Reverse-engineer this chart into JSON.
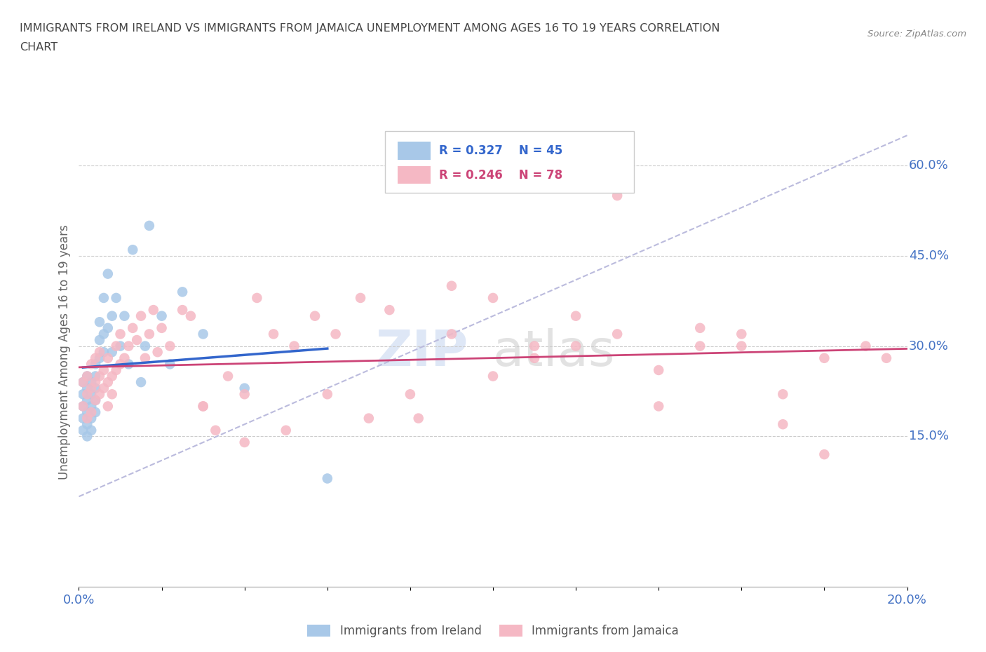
{
  "title_line1": "IMMIGRANTS FROM IRELAND VS IMMIGRANTS FROM JAMAICA UNEMPLOYMENT AMONG AGES 16 TO 19 YEARS CORRELATION",
  "title_line2": "CHART",
  "source_text": "Source: ZipAtlas.com",
  "ylabel": "Unemployment Among Ages 16 to 19 years",
  "xlim": [
    0.0,
    0.2
  ],
  "ylim": [
    -0.1,
    0.68
  ],
  "ytick_right_vals": [
    0.6,
    0.45,
    0.3,
    0.15
  ],
  "ytick_right_labels": [
    "60.0%",
    "45.0%",
    "30.0%",
    "15.0%"
  ],
  "grid_color": "#cccccc",
  "background_color": "#ffffff",
  "ireland_color": "#a8c8e8",
  "ireland_line_color": "#3366cc",
  "jamaica_color": "#f5b8c4",
  "jamaica_line_color": "#cc4477",
  "ireland_label": "Immigrants from Ireland",
  "jamaica_label": "Immigrants from Jamaica",
  "ireland_R": 0.327,
  "ireland_N": 45,
  "jamaica_R": 0.246,
  "jamaica_N": 78,
  "watermark_zip": "ZIP",
  "watermark_atlas": "atlas",
  "diag_color": "#bbbbdd",
  "tick_label_color": "#4472c4",
  "ireland_x": [
    0.001,
    0.001,
    0.001,
    0.001,
    0.001,
    0.002,
    0.002,
    0.002,
    0.002,
    0.002,
    0.002,
    0.003,
    0.003,
    0.003,
    0.003,
    0.003,
    0.004,
    0.004,
    0.004,
    0.004,
    0.004,
    0.005,
    0.005,
    0.005,
    0.006,
    0.006,
    0.006,
    0.007,
    0.007,
    0.008,
    0.008,
    0.009,
    0.01,
    0.011,
    0.012,
    0.013,
    0.015,
    0.016,
    0.017,
    0.02,
    0.022,
    0.025,
    0.03,
    0.04,
    0.06
  ],
  "ireland_y": [
    0.2,
    0.22,
    0.18,
    0.24,
    0.16,
    0.21,
    0.19,
    0.23,
    0.17,
    0.25,
    0.15,
    0.2,
    0.22,
    0.18,
    0.24,
    0.16,
    0.21,
    0.19,
    0.25,
    0.23,
    0.27,
    0.31,
    0.28,
    0.34,
    0.29,
    0.32,
    0.38,
    0.33,
    0.42,
    0.35,
    0.29,
    0.38,
    0.3,
    0.35,
    0.27,
    0.46,
    0.24,
    0.3,
    0.5,
    0.35,
    0.27,
    0.39,
    0.32,
    0.23,
    0.08
  ],
  "jamaica_x": [
    0.001,
    0.001,
    0.002,
    0.002,
    0.002,
    0.003,
    0.003,
    0.003,
    0.004,
    0.004,
    0.004,
    0.005,
    0.005,
    0.005,
    0.006,
    0.006,
    0.007,
    0.007,
    0.007,
    0.008,
    0.008,
    0.009,
    0.009,
    0.01,
    0.01,
    0.011,
    0.012,
    0.013,
    0.014,
    0.015,
    0.016,
    0.017,
    0.018,
    0.019,
    0.02,
    0.022,
    0.025,
    0.027,
    0.03,
    0.033,
    0.036,
    0.04,
    0.043,
    0.047,
    0.052,
    0.057,
    0.062,
    0.068,
    0.075,
    0.082,
    0.09,
    0.1,
    0.11,
    0.12,
    0.13,
    0.14,
    0.15,
    0.16,
    0.17,
    0.18,
    0.15,
    0.16,
    0.13,
    0.14,
    0.17,
    0.18,
    0.12,
    0.11,
    0.09,
    0.1,
    0.08,
    0.07,
    0.06,
    0.05,
    0.04,
    0.03,
    0.19,
    0.195
  ],
  "jamaica_y": [
    0.24,
    0.2,
    0.25,
    0.22,
    0.18,
    0.23,
    0.27,
    0.19,
    0.24,
    0.21,
    0.28,
    0.25,
    0.22,
    0.29,
    0.23,
    0.26,
    0.24,
    0.2,
    0.28,
    0.25,
    0.22,
    0.26,
    0.3,
    0.27,
    0.32,
    0.28,
    0.3,
    0.33,
    0.31,
    0.35,
    0.28,
    0.32,
    0.36,
    0.29,
    0.33,
    0.3,
    0.36,
    0.35,
    0.2,
    0.16,
    0.25,
    0.22,
    0.38,
    0.32,
    0.3,
    0.35,
    0.32,
    0.38,
    0.36,
    0.18,
    0.4,
    0.38,
    0.3,
    0.35,
    0.32,
    0.2,
    0.33,
    0.32,
    0.22,
    0.28,
    0.3,
    0.3,
    0.55,
    0.26,
    0.17,
    0.12,
    0.3,
    0.28,
    0.32,
    0.25,
    0.22,
    0.18,
    0.22,
    0.16,
    0.14,
    0.2,
    0.3,
    0.28
  ]
}
